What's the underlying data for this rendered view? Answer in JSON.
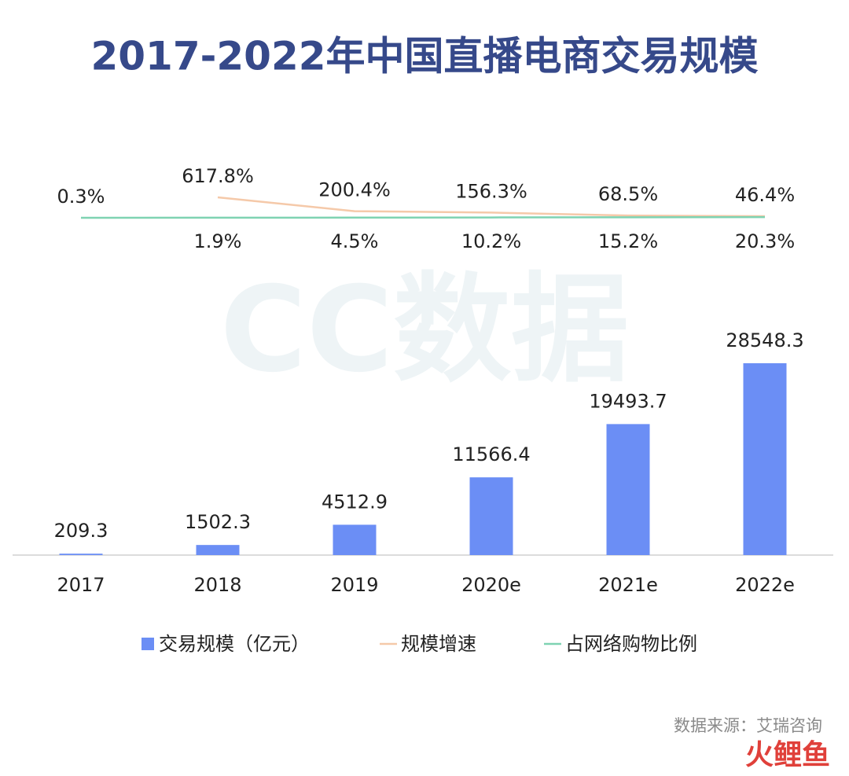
{
  "chart_data": {
    "type": "combo",
    "title": "2017-2022年中国直播电商交易规模",
    "categories": [
      "2017",
      "2018",
      "2019",
      "2020e",
      "2021e",
      "2022e"
    ],
    "series": [
      {
        "name": "交易规模（亿元）",
        "type": "bar",
        "color": "#6b8ef5",
        "values": [
          209.3,
          1502.3,
          4512.9,
          11566.4,
          19493.7,
          28548.3
        ]
      },
      {
        "name": "规模增速",
        "type": "line",
        "color": "#f5c9a9",
        "values": [
          null,
          617.8,
          200.4,
          156.3,
          68.5,
          46.4
        ],
        "value_labels": [
          null,
          "617.8%",
          "200.4%",
          "156.3%",
          "68.5%",
          "46.4%"
        ]
      },
      {
        "name": "占网络购物比例",
        "type": "line",
        "color": "#7fd3b2",
        "values": [
          0.3,
          1.9,
          4.5,
          10.2,
          15.2,
          20.3
        ],
        "value_labels": [
          "0.3%",
          "1.9%",
          "4.5%",
          "10.2%",
          "15.2%",
          "20.3%"
        ]
      }
    ],
    "legend": "bottom",
    "source": "数据来源：艾瑞咨询",
    "watermark": "CC数据",
    "brand": "火鲤鱼"
  }
}
